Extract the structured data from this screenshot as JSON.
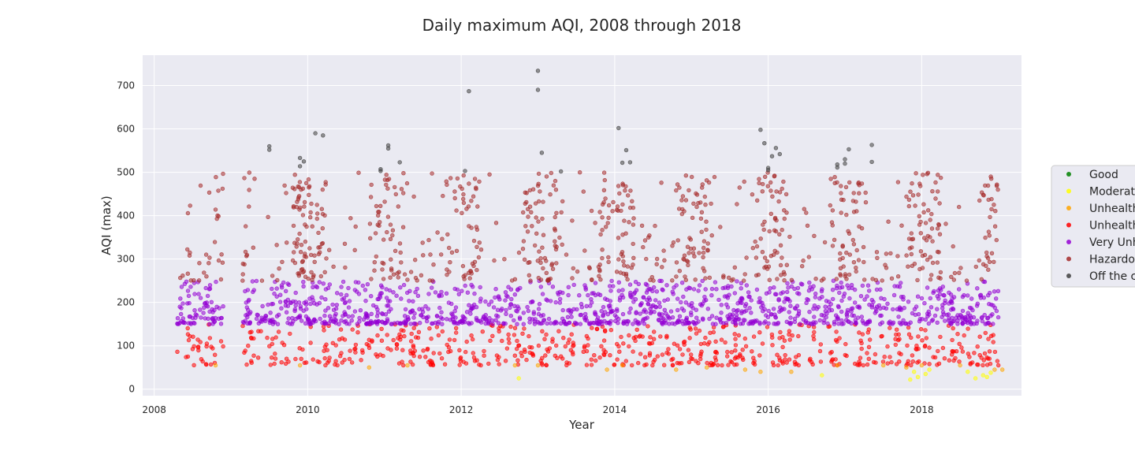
{
  "chart_data": {
    "type": "scatter",
    "title": "Daily maximum AQI, 2008 through 2018",
    "xlabel": "Year",
    "ylabel": "AQI (max)",
    "xlim": [
      2007.85,
      2019.3
    ],
    "ylim": [
      -15,
      770
    ],
    "x_ticks": [
      2008,
      2010,
      2012,
      2014,
      2016,
      2018
    ],
    "y_ticks": [
      0,
      100,
      200,
      300,
      400,
      500,
      600,
      700
    ],
    "grid": true,
    "legend_position": "right",
    "series": [
      {
        "name": "Good",
        "color": "#008000",
        "values": []
      },
      {
        "name": "Moderate",
        "color": "#ffff00",
        "values": [
          {
            "x": 2012.75,
            "y": 25
          },
          {
            "x": 2016.7,
            "y": 32
          },
          {
            "x": 2017.85,
            "y": 22
          },
          {
            "x": 2017.95,
            "y": 28
          },
          {
            "x": 2018.05,
            "y": 35
          },
          {
            "x": 2018.7,
            "y": 25
          },
          {
            "x": 2018.8,
            "y": 32
          },
          {
            "x": 2018.9,
            "y": 38
          },
          {
            "x": 2018.6,
            "y": 40
          },
          {
            "x": 2018.1,
            "y": 45
          },
          {
            "x": 2017.9,
            "y": 40
          },
          {
            "x": 2018.85,
            "y": 28
          }
        ]
      },
      {
        "name": "Unhealthy for Sensitive Groups",
        "color": "#ffa500",
        "values": [
          {
            "x": 2008.8,
            "y": 55
          },
          {
            "x": 2009.9,
            "y": 55
          },
          {
            "x": 2010.8,
            "y": 50
          },
          {
            "x": 2011.3,
            "y": 55
          },
          {
            "x": 2012.7,
            "y": 55
          },
          {
            "x": 2013.0,
            "y": 55
          },
          {
            "x": 2013.9,
            "y": 45
          },
          {
            "x": 2014.1,
            "y": 55
          },
          {
            "x": 2014.8,
            "y": 45
          },
          {
            "x": 2015.2,
            "y": 50
          },
          {
            "x": 2015.7,
            "y": 45
          },
          {
            "x": 2015.9,
            "y": 40
          },
          {
            "x": 2016.3,
            "y": 40
          },
          {
            "x": 2016.9,
            "y": 55
          },
          {
            "x": 2017.5,
            "y": 55
          },
          {
            "x": 2017.8,
            "y": 50
          },
          {
            "x": 2018.0,
            "y": 55
          },
          {
            "x": 2018.5,
            "y": 55
          },
          {
            "x": 2018.95,
            "y": 45
          },
          {
            "x": 2019.05,
            "y": 45
          }
        ]
      },
      {
        "name": "Unhealthy",
        "color": "#ff0000",
        "band": [
          55,
          150
        ],
        "x_range": [
          2008.3,
          2019.0
        ],
        "gaps": [
          [
            2008.9,
            2009.15
          ]
        ],
        "count": 650
      },
      {
        "name": "Very Unhealthy",
        "color": "#9400d3",
        "band": [
          150,
          250
        ],
        "x_range": [
          2008.3,
          2019.0
        ],
        "gaps": [
          [
            2008.9,
            2009.15
          ]
        ],
        "count": 1300
      },
      {
        "name": "Hazardous",
        "color": "#a52a2a",
        "band": [
          250,
          500
        ],
        "x_range": [
          2008.3,
          2019.0
        ],
        "gaps": [
          [
            2008.9,
            2009.15
          ]
        ],
        "seasonal_peaks": [
          2008.3,
          2009.9,
          2010.9,
          2011.9,
          2013.0,
          2013.95,
          2014.9,
          2015.95,
          2016.95,
          2018.1
        ],
        "count": 800
      },
      {
        "name": "Off the charts",
        "color": "#404040",
        "values": [
          {
            "x": 2009.5,
            "y": 560
          },
          {
            "x": 2009.5,
            "y": 552
          },
          {
            "x": 2009.9,
            "y": 533
          },
          {
            "x": 2009.9,
            "y": 514
          },
          {
            "x": 2009.95,
            "y": 525
          },
          {
            "x": 2010.1,
            "y": 590
          },
          {
            "x": 2010.2,
            "y": 585
          },
          {
            "x": 2010.95,
            "y": 507
          },
          {
            "x": 2010.95,
            "y": 503
          },
          {
            "x": 2011.05,
            "y": 562
          },
          {
            "x": 2011.05,
            "y": 555
          },
          {
            "x": 2011.2,
            "y": 523
          },
          {
            "x": 2012.05,
            "y": 503
          },
          {
            "x": 2012.1,
            "y": 687
          },
          {
            "x": 2013.0,
            "y": 734
          },
          {
            "x": 2013.0,
            "y": 690
          },
          {
            "x": 2013.05,
            "y": 545
          },
          {
            "x": 2013.3,
            "y": 502
          },
          {
            "x": 2014.05,
            "y": 602
          },
          {
            "x": 2014.1,
            "y": 522
          },
          {
            "x": 2014.15,
            "y": 551
          },
          {
            "x": 2014.2,
            "y": 523
          },
          {
            "x": 2015.9,
            "y": 598
          },
          {
            "x": 2015.95,
            "y": 567
          },
          {
            "x": 2016.0,
            "y": 510
          },
          {
            "x": 2016.0,
            "y": 505
          },
          {
            "x": 2016.05,
            "y": 537
          },
          {
            "x": 2016.1,
            "y": 556
          },
          {
            "x": 2016.15,
            "y": 542
          },
          {
            "x": 2016.9,
            "y": 518
          },
          {
            "x": 2016.9,
            "y": 511
          },
          {
            "x": 2017.0,
            "y": 530
          },
          {
            "x": 2017.0,
            "y": 520
          },
          {
            "x": 2017.05,
            "y": 553
          },
          {
            "x": 2017.35,
            "y": 563
          },
          {
            "x": 2017.35,
            "y": 524
          }
        ]
      }
    ]
  }
}
